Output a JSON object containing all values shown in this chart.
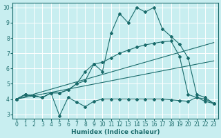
{
  "xlabel": "Humidex (Indice chaleur)",
  "xlim": [
    -0.5,
    23.5
  ],
  "ylim": [
    2.7,
    10.3
  ],
  "yticks": [
    3,
    4,
    5,
    6,
    7,
    8,
    9,
    10
  ],
  "xticks": [
    0,
    1,
    2,
    3,
    4,
    5,
    6,
    7,
    8,
    9,
    10,
    11,
    12,
    13,
    14,
    15,
    16,
    17,
    18,
    19,
    20,
    21,
    22,
    23
  ],
  "bg_color": "#c8eef0",
  "line_color": "#1a6b6b",
  "grid_color": "#ffffff",
  "line1_x": [
    0,
    1,
    2,
    3,
    4,
    5,
    6,
    7,
    8,
    9,
    10,
    11,
    12,
    13,
    14,
    15,
    16,
    17,
    18,
    19,
    20,
    21,
    22,
    23
  ],
  "line1_y": [
    4.0,
    4.3,
    4.2,
    4.1,
    4.4,
    2.9,
    4.1,
    3.8,
    3.5,
    3.85,
    4.0,
    4.0,
    4.0,
    4.0,
    4.0,
    4.0,
    4.0,
    4.0,
    3.95,
    3.9,
    3.85,
    4.1,
    4.0,
    3.7
  ],
  "line2_x": [
    0,
    1,
    2,
    3,
    4,
    5,
    6,
    7,
    8,
    9,
    10,
    11,
    12,
    13,
    14,
    15,
    16,
    17,
    18,
    19,
    20,
    21,
    22,
    23
  ],
  "line2_y": [
    4.0,
    4.3,
    4.2,
    4.1,
    4.4,
    4.4,
    4.6,
    5.0,
    5.2,
    6.3,
    6.4,
    6.7,
    7.0,
    7.2,
    7.4,
    7.55,
    7.65,
    7.75,
    7.8,
    6.8,
    4.3,
    4.1,
    3.85,
    3.7
  ],
  "line3_x": [
    0,
    1,
    2,
    3,
    4,
    5,
    6,
    7,
    8,
    9,
    10,
    11,
    12,
    13,
    14,
    15,
    16,
    17,
    18,
    19,
    20,
    21,
    22,
    23
  ],
  "line3_y": [
    4.0,
    4.3,
    4.2,
    4.1,
    4.4,
    4.4,
    4.6,
    5.0,
    5.8,
    6.3,
    5.8,
    8.3,
    9.6,
    9.0,
    10.0,
    9.7,
    10.0,
    8.6,
    8.1,
    7.6,
    6.7,
    4.3,
    4.1,
    3.7
  ],
  "line4_x": [
    0,
    23
  ],
  "line4_y": [
    4.0,
    7.7
  ],
  "line5_x": [
    0,
    23
  ],
  "line5_y": [
    4.0,
    6.5
  ]
}
